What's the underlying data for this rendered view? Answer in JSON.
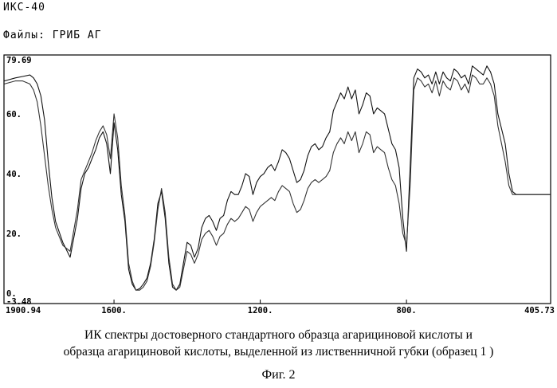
{
  "header": {
    "instrument": "ИКС-40",
    "files_label": "Файлы:",
    "files_value": "ГРИБ АГ"
  },
  "caption": {
    "line1": "ИК спектры достоверного стандартного образца агарициновой кислоты и",
    "line2": "образца агарициновой  кислоты, выделенной из лиственничной губки (образец 1 )"
  },
  "figure_label": "Фиг. 2",
  "chart_data": {
    "type": "line",
    "title": "",
    "xlabel": "",
    "ylabel": "",
    "xlim": [
      1900.94,
      405.73
    ],
    "ylim": [
      -3.48,
      79.69
    ],
    "grid": false,
    "legend": "none",
    "x_ticks": [
      {
        "value": 1900.94,
        "label": "1900.94"
      },
      {
        "value": 1600,
        "label": "1600."
      },
      {
        "value": 1200,
        "label": "1200."
      },
      {
        "value": 800,
        "label": "800."
      },
      {
        "value": 405.73,
        "label": "405.73"
      }
    ],
    "y_ticks": [
      {
        "value": 79.69,
        "label": "79.69"
      },
      {
        "value": 60,
        "label": "60."
      },
      {
        "value": 40,
        "label": "40."
      },
      {
        "value": 20,
        "label": "20."
      },
      {
        "value": 0,
        "label": "0."
      },
      {
        "value": -3.48,
        "label": "-3.48"
      }
    ],
    "series": [
      {
        "color": "#111111",
        "x": [
          1900,
          1870,
          1850,
          1830,
          1820,
          1810,
          1800,
          1790,
          1780,
          1770,
          1760,
          1740,
          1720,
          1700,
          1690,
          1680,
          1670,
          1660,
          1650,
          1640,
          1630,
          1620,
          1610,
          1600,
          1590,
          1580,
          1570,
          1560,
          1550,
          1540,
          1530,
          1520,
          1510,
          1500,
          1490,
          1480,
          1470,
          1460,
          1450,
          1440,
          1430,
          1420,
          1410,
          1400,
          1390,
          1380,
          1370,
          1360,
          1350,
          1340,
          1330,
          1320,
          1310,
          1300,
          1290,
          1280,
          1270,
          1260,
          1250,
          1240,
          1230,
          1220,
          1210,
          1200,
          1190,
          1180,
          1170,
          1160,
          1150,
          1140,
          1130,
          1120,
          1110,
          1100,
          1090,
          1080,
          1070,
          1060,
          1050,
          1040,
          1030,
          1020,
          1010,
          1000,
          990,
          980,
          970,
          960,
          950,
          940,
          930,
          920,
          910,
          900,
          890,
          880,
          870,
          860,
          850,
          840,
          830,
          820,
          810,
          800,
          790,
          780,
          770,
          760,
          750,
          740,
          730,
          720,
          710,
          700,
          690,
          680,
          670,
          660,
          650,
          640,
          630,
          620,
          610,
          600,
          590,
          580,
          570,
          560,
          550,
          540,
          530,
          520,
          510,
          500,
          490,
          480,
          470,
          460,
          450,
          440,
          430,
          420,
          410,
          406
        ],
        "y": [
          71,
          72,
          72.5,
          73,
          72,
          70,
          66,
          58,
          44,
          32,
          24,
          17,
          12,
          25,
          35,
          40,
          42,
          45,
          48,
          52,
          54,
          50,
          40,
          57,
          48,
          33,
          24,
          8,
          3,
          1,
          1.5,
          3,
          5,
          10,
          18,
          30,
          34,
          25,
          10,
          2,
          1,
          3,
          10,
          17,
          16,
          12,
          15,
          22,
          25,
          26,
          24,
          21,
          25,
          26,
          31,
          34,
          33,
          33,
          36,
          40,
          39,
          33,
          37,
          39,
          40,
          42,
          43,
          41,
          44,
          48,
          47,
          45,
          41,
          37,
          38,
          41,
          46,
          49,
          50,
          48,
          49,
          52,
          54,
          61,
          64,
          67,
          65,
          69,
          65,
          68,
          60,
          63,
          67,
          66,
          60,
          62,
          61,
          60,
          55,
          50,
          48,
          42,
          25,
          14,
          42,
          72,
          75,
          74,
          72,
          73,
          70,
          74,
          70,
          74,
          72,
          71,
          75,
          74,
          72,
          73,
          70,
          76,
          75,
          74,
          73,
          76,
          74,
          70,
          60,
          55,
          50,
          40,
          34,
          33,
          33,
          33,
          33,
          33,
          33,
          33,
          33,
          33,
          33,
          33
        ]
      },
      {
        "color": "#333333",
        "x": [
          1900,
          1870,
          1850,
          1830,
          1820,
          1810,
          1800,
          1790,
          1780,
          1770,
          1760,
          1740,
          1720,
          1700,
          1690,
          1680,
          1670,
          1660,
          1650,
          1640,
          1630,
          1620,
          1610,
          1600,
          1590,
          1580,
          1570,
          1560,
          1550,
          1540,
          1530,
          1520,
          1510,
          1500,
          1490,
          1480,
          1470,
          1460,
          1450,
          1440,
          1430,
          1420,
          1410,
          1400,
          1390,
          1380,
          1370,
          1360,
          1350,
          1340,
          1330,
          1320,
          1310,
          1300,
          1290,
          1280,
          1270,
          1260,
          1250,
          1240,
          1230,
          1220,
          1210,
          1200,
          1190,
          1180,
          1170,
          1160,
          1150,
          1140,
          1130,
          1120,
          1110,
          1100,
          1090,
          1080,
          1070,
          1060,
          1050,
          1040,
          1030,
          1020,
          1010,
          1000,
          990,
          980,
          970,
          960,
          950,
          940,
          930,
          920,
          910,
          900,
          890,
          880,
          870,
          860,
          850,
          840,
          830,
          820,
          810,
          800,
          790,
          780,
          770,
          760,
          750,
          740,
          730,
          720,
          710,
          700,
          690,
          680,
          670,
          660,
          650,
          640,
          630,
          620,
          610,
          600,
          590,
          580,
          570,
          560,
          550,
          540,
          530,
          520,
          510,
          500,
          490,
          480,
          470,
          460,
          450,
          440,
          430,
          420,
          410,
          406
        ],
        "y": [
          70,
          71,
          71,
          70,
          68,
          64,
          56,
          46,
          36,
          28,
          22,
          16,
          14,
          28,
          38,
          41,
          44,
          47,
          51,
          54,
          56,
          53,
          45,
          60,
          52,
          36,
          26,
          10,
          4,
          1,
          1,
          2,
          4,
          9,
          17,
          28,
          35,
          27,
          12,
          3,
          1,
          2,
          8,
          14,
          13,
          10,
          13,
          18,
          20,
          21,
          19,
          16,
          19,
          20,
          23,
          25,
          24,
          25,
          27,
          29,
          28,
          24,
          27,
          29,
          30,
          31,
          32,
          31,
          34,
          36,
          35,
          34,
          30,
          27,
          28,
          31,
          35,
          37,
          38,
          37,
          38,
          39,
          41,
          47,
          50,
          52,
          50,
          54,
          51,
          54,
          47,
          50,
          54,
          53,
          47,
          49,
          48,
          47,
          42,
          38,
          36,
          30,
          20,
          16,
          36,
          68,
          72,
          71,
          69,
          70,
          67,
          71,
          66,
          71,
          69,
          68,
          72,
          71,
          68,
          70,
          67,
          73,
          72,
          70,
          70,
          72,
          70,
          66,
          56,
          50,
          44,
          36,
          33,
          33,
          33,
          33,
          33,
          33,
          33,
          33,
          33,
          33,
          33,
          33
        ]
      }
    ]
  }
}
